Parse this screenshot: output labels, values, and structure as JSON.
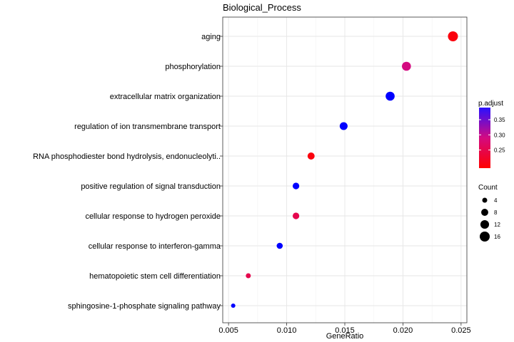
{
  "chart_data": {
    "type": "scatter",
    "title": "Biological_Process",
    "xlabel": "GeneRatio",
    "ylabel": "",
    "xlim": [
      0.0045,
      0.0255
    ],
    "xticks": [
      "0.005",
      "0.010",
      "0.015",
      "0.020",
      "0.025"
    ],
    "xtick_values": [
      0.005,
      0.01,
      0.015,
      0.02,
      0.025
    ],
    "grid": true,
    "legend_position": "right",
    "color_legend": {
      "title": "p.adjust",
      "ticks": [
        "0.35",
        "0.30",
        "0.25"
      ],
      "tick_values": [
        0.35,
        0.3,
        0.25
      ],
      "range": [
        0.19,
        0.39
      ],
      "low_color": "#ff0000",
      "high_color": "#0000ff"
    },
    "size_legend": {
      "title": "Count",
      "labels": [
        "4",
        "8",
        "12",
        "16"
      ],
      "values": [
        4,
        8,
        12,
        16
      ]
    },
    "points": [
      {
        "term": "aging",
        "gene_ratio": 0.0243,
        "count": 16,
        "p_adjust": 0.2
      },
      {
        "term": "phosphorylation",
        "gene_ratio": 0.0203,
        "count": 13,
        "p_adjust": 0.29
      },
      {
        "term": "extracellular matrix organization",
        "gene_ratio": 0.0189,
        "count": 13,
        "p_adjust": 0.39
      },
      {
        "term": "regulation of ion transmembrane transport",
        "gene_ratio": 0.0149,
        "count": 10,
        "p_adjust": 0.39
      },
      {
        "term": "RNA phosphodiester bond hydrolysis, endonucleolyti..",
        "gene_ratio": 0.0121,
        "count": 8,
        "p_adjust": 0.2
      },
      {
        "term": "positive regulation of signal transduction",
        "gene_ratio": 0.0108,
        "count": 7,
        "p_adjust": 0.39
      },
      {
        "term": "cellular response to hydrogen peroxide",
        "gene_ratio": 0.0108,
        "count": 7,
        "p_adjust": 0.25
      },
      {
        "term": "cellular response to interferon-gamma",
        "gene_ratio": 0.0094,
        "count": 6,
        "p_adjust": 0.39
      },
      {
        "term": "hematopoietic stem cell differentiation",
        "gene_ratio": 0.0067,
        "count": 4,
        "p_adjust": 0.25
      },
      {
        "term": "sphingosine-1-phosphate signaling pathway",
        "gene_ratio": 0.0054,
        "count": 3,
        "p_adjust": 0.39
      }
    ]
  }
}
